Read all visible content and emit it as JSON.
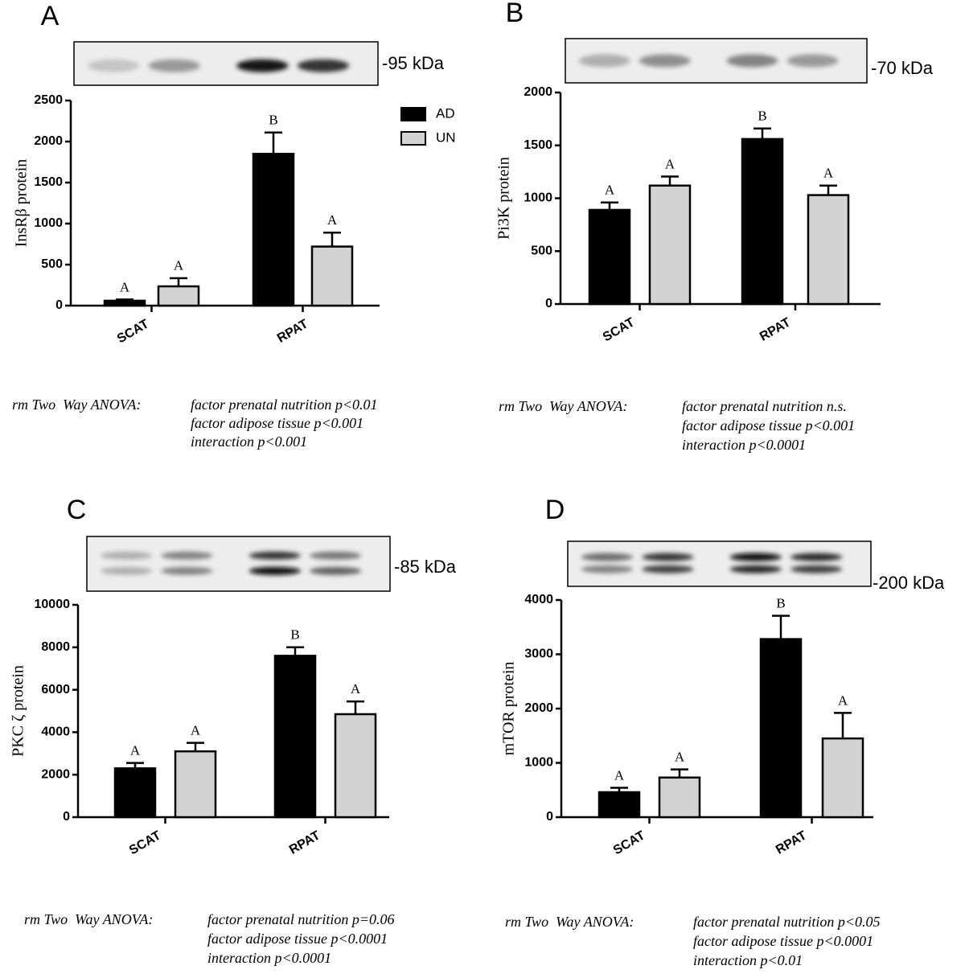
{
  "chart_data": [
    {
      "type": "bar",
      "panel": "A",
      "blot_label": "-95 kDa",
      "y_label": "InsRβ protein",
      "categories": [
        "SCAT",
        "RPAT"
      ],
      "ylim": [
        0,
        2500
      ],
      "yticks": [
        0,
        500,
        1000,
        1500,
        2000,
        2500
      ],
      "legend": "upper right",
      "series": [
        {
          "name": "AD",
          "color": "#000000",
          "values": [
            60,
            1850
          ],
          "errors": [
            15,
            260
          ],
          "letters": [
            "A",
            "B"
          ]
        },
        {
          "name": "UN",
          "color": "#d3d3d3",
          "values": [
            235,
            720
          ],
          "errors": [
            100,
            170
          ],
          "letters": [
            "A",
            "A"
          ]
        }
      ],
      "anova": {
        "label": "rm Two  Way ANOVA:",
        "lines": [
          "factor prenatal nutrition p<0.01",
          "factor adipose tissue p<0.001",
          "interaction p<0.001"
        ]
      }
    },
    {
      "type": "bar",
      "panel": "B",
      "blot_label": "-70 kDa",
      "y_label": "Pi3K protein",
      "categories": [
        "SCAT",
        "RPAT"
      ],
      "ylim": [
        0,
        2000
      ],
      "yticks": [
        0,
        500,
        1000,
        1500,
        2000
      ],
      "series": [
        {
          "name": "AD",
          "color": "#000000",
          "values": [
            890,
            1560
          ],
          "errors": [
            70,
            100
          ],
          "letters": [
            "A",
            "B"
          ]
        },
        {
          "name": "UN",
          "color": "#d3d3d3",
          "values": [
            1120,
            1030
          ],
          "errors": [
            85,
            90
          ],
          "letters": [
            "A",
            "A"
          ]
        }
      ],
      "anova": {
        "label": "rm Two  Way ANOVA:",
        "lines": [
          "factor prenatal nutrition n.s.",
          "factor adipose tissue p<0.001",
          "interaction p<0.0001"
        ]
      }
    },
    {
      "type": "bar",
      "panel": "C",
      "blot_label": "-85 kDa",
      "y_label": "PKC ζ protein",
      "categories": [
        "SCAT",
        "RPAT"
      ],
      "ylim": [
        0,
        10000
      ],
      "yticks": [
        0,
        2000,
        4000,
        6000,
        8000,
        10000
      ],
      "series": [
        {
          "name": "AD",
          "color": "#000000",
          "values": [
            2300,
            7600
          ],
          "errors": [
            250,
            400
          ],
          "letters": [
            "A",
            "B"
          ]
        },
        {
          "name": "UN",
          "color": "#d3d3d3",
          "values": [
            3100,
            4850
          ],
          "errors": [
            400,
            600
          ],
          "letters": [
            "A",
            "A"
          ]
        }
      ],
      "anova": {
        "label": "rm Two  Way ANOVA:",
        "lines": [
          "factor prenatal nutrition p=0.06",
          "factor adipose tissue p<0.0001",
          "interaction p<0.0001"
        ]
      }
    },
    {
      "type": "bar",
      "panel": "D",
      "blot_label": "-200 kDa",
      "y_label": "mTOR protein",
      "categories": [
        "SCAT",
        "RPAT"
      ],
      "ylim": [
        0,
        4000
      ],
      "yticks": [
        0,
        1000,
        2000,
        3000,
        4000
      ],
      "series": [
        {
          "name": "AD",
          "color": "#000000",
          "values": [
            460,
            3280
          ],
          "errors": [
            80,
            430
          ],
          "letters": [
            "A",
            "B"
          ]
        },
        {
          "name": "UN",
          "color": "#d3d3d3",
          "values": [
            730,
            1450
          ],
          "errors": [
            150,
            470
          ],
          "letters": [
            "A",
            "A"
          ]
        }
      ],
      "anova": {
        "label": "rm Two  Way ANOVA:",
        "lines": [
          "factor prenatal nutrition p<0.05",
          "factor adipose tissue p<0.0001",
          "interaction p<0.01"
        ]
      }
    }
  ]
}
